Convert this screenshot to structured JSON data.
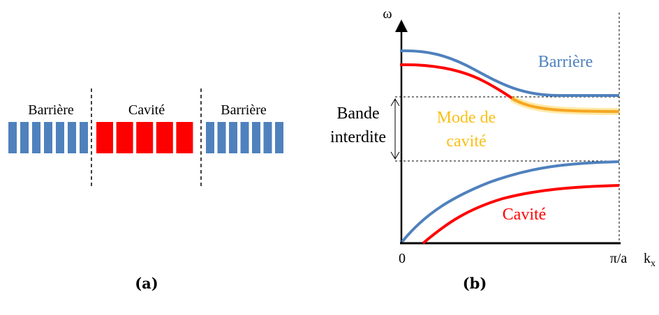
{
  "panel_a": {
    "label": "(a)",
    "regions": [
      {
        "name": "left-barrier",
        "label": "Barrière",
        "color": "#4f81bd",
        "bars": 7
      },
      {
        "name": "cavity",
        "label": "Cavité",
        "color": "#ff0000",
        "bars": 5
      },
      {
        "name": "right-barrier",
        "label": "Barrière",
        "color": "#4f81bd",
        "bars": 7
      }
    ]
  },
  "panel_b": {
    "label": "(b)",
    "y_axis_label": "ω",
    "x_axis_label": "k",
    "x_axis_label_sub": "x",
    "origin_label": "0",
    "x_end_label": "π/a",
    "band_gap_label_line1": "Bande",
    "band_gap_label_line2": "interdite",
    "barrier_label": "Barrière",
    "cavity_label": "Cavité",
    "cavity_mode_label_line1": "Mode de",
    "cavity_mode_label_line2": "cavité",
    "colors": {
      "barrier": "#4f81bd",
      "cavity": "#ff0000",
      "cavity_mode": "#fbbf16",
      "cavity_mode_glow": "#ffc000"
    }
  }
}
